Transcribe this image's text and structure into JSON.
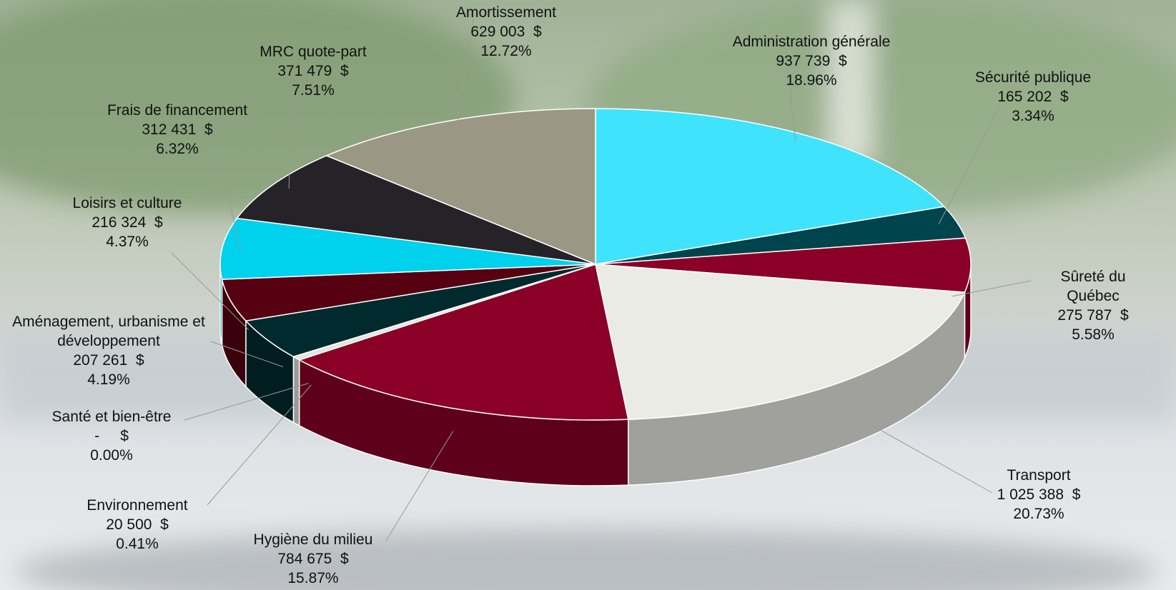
{
  "chart_data": {
    "type": "pie3d",
    "categories": [
      "Administration générale",
      "Sécurité publique",
      "Sûreté du Québec",
      "Transport",
      "Hygiène du milieu",
      "Environnement",
      "Santé et bien-être",
      "Aménagement, urbanisme et développement",
      "Loisirs et culture",
      "Frais de financement",
      "MRC quote-part",
      "Amortissement"
    ],
    "values": [
      937739,
      165202,
      275787,
      1025388,
      784675,
      20500,
      0,
      207261,
      216324,
      312431,
      371479,
      629003
    ],
    "value_labels": [
      "937 739  $",
      "165 202  $",
      "275 787  $",
      "1 025 388  $",
      "784 675  $",
      "20 500  $",
      "-     $",
      "207 261  $",
      "216 324  $",
      "312 431  $",
      "371 479  $",
      "629 003  $"
    ],
    "percent_labels": [
      "18.96%",
      "3.34%",
      "5.58%",
      "20.73%",
      "15.87%",
      "0.41%",
      "0.00%",
      "4.19%",
      "4.37%",
      "6.32%",
      "7.51%",
      "12.72%"
    ],
    "colors": [
      "#3fe3fb",
      "#00444d",
      "#8a0027",
      "#ebebe6",
      "#8a0027",
      "#e4e4e0",
      "#d0d0d0",
      "#002a2e",
      "#560012",
      "#00d1ec",
      "#252228",
      "#9a9884"
    ]
  }
}
